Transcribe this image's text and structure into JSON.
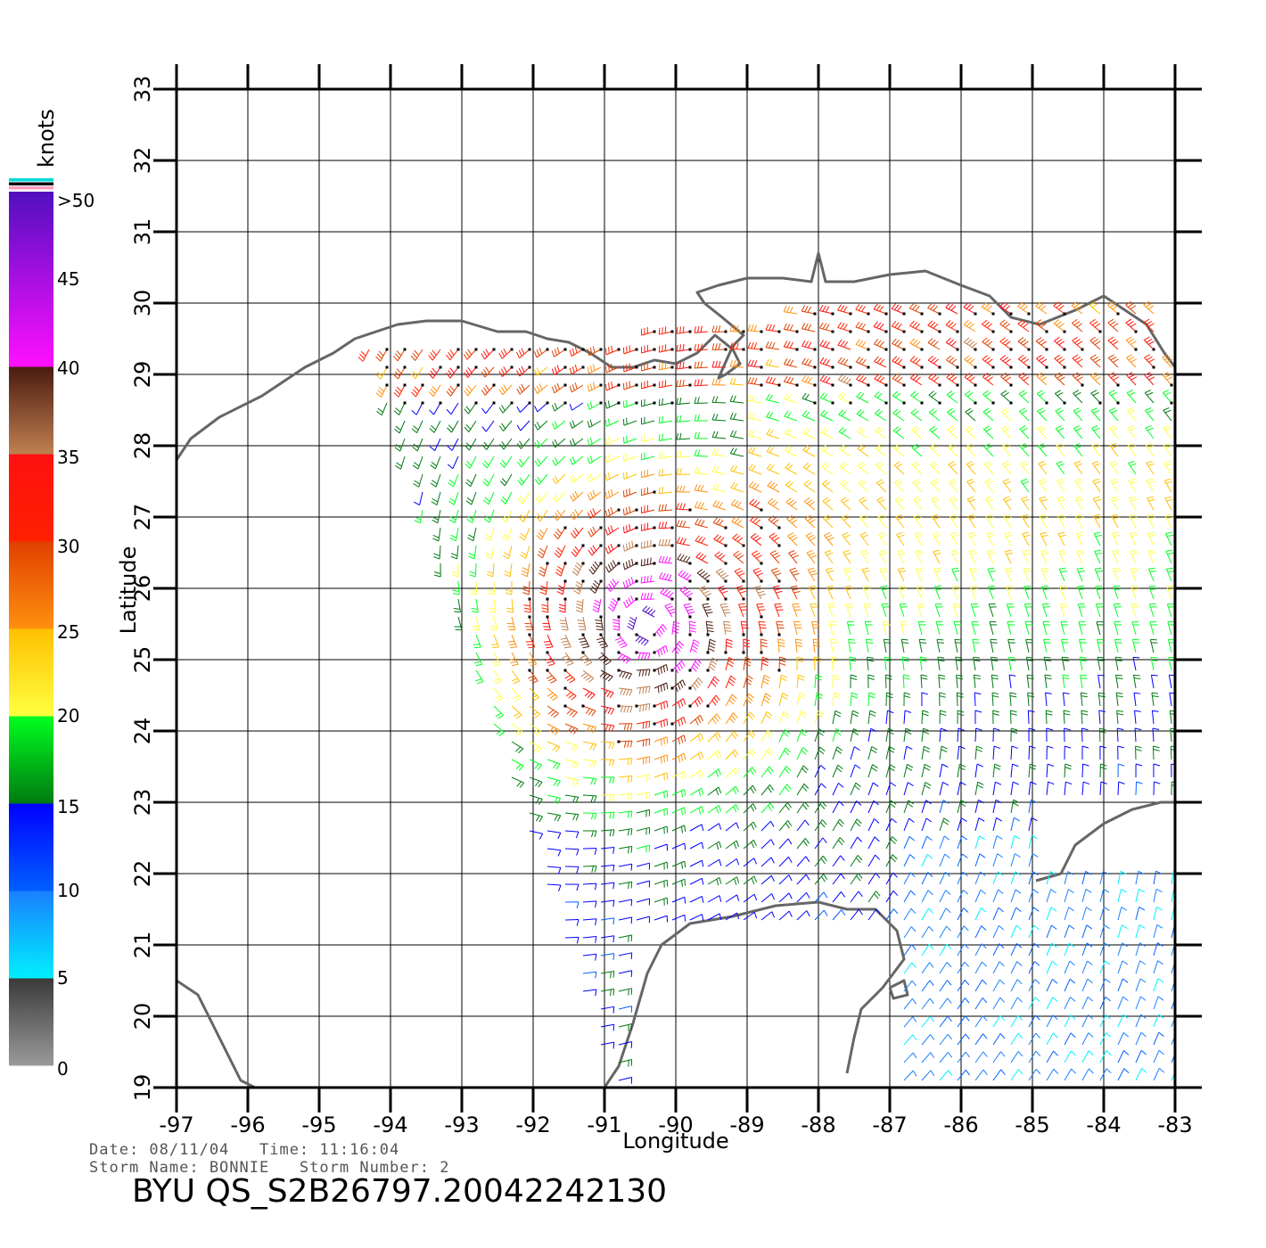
{
  "map": {
    "lon_min": -97,
    "lon_max": -83,
    "lat_min": 19,
    "lat_max": 33,
    "lon_ticks": [
      "-97",
      "-96",
      "-95",
      "-94",
      "-93",
      "-92",
      "-91",
      "-90",
      "-89",
      "-88",
      "-87",
      "-86",
      "-85",
      "-84",
      "-83"
    ],
    "lat_ticks": [
      "19",
      "20",
      "21",
      "22",
      "23",
      "24",
      "25",
      "26",
      "27",
      "28",
      "29",
      "30",
      "31",
      "32",
      "33"
    ],
    "x_label": "Longitude",
    "y_label": "Latitude",
    "grid": true,
    "coastline_color": "#666666",
    "rain_flag_color": "#000000",
    "storm_center": {
      "lon": -90.4,
      "lat": 25.5
    }
  },
  "colorbar": {
    "unit_label": "knots",
    "labels": [
      ">50",
      "45",
      "40",
      "35",
      "30",
      "25",
      "20",
      "15",
      "10",
      "5",
      "0"
    ],
    "bands": [
      {
        "from": 0,
        "to": 5,
        "top": "#3a3a3a",
        "bottom": "#9a9a9a"
      },
      {
        "from": 5,
        "to": 10,
        "top": "#1a7fff",
        "bottom": "#00f0ff"
      },
      {
        "from": 10,
        "to": 15,
        "top": "#0000ff",
        "bottom": "#0060ff"
      },
      {
        "from": 15,
        "to": 20,
        "top": "#00ff20",
        "bottom": "#007a10"
      },
      {
        "from": 20,
        "to": 25,
        "top": "#ffc000",
        "bottom": "#ffff40"
      },
      {
        "from": 25,
        "to": 30,
        "top": "#e04000",
        "bottom": "#ff9010"
      },
      {
        "from": 30,
        "to": 35,
        "top": "#ff1010",
        "bottom": "#ff2000"
      },
      {
        "from": 35,
        "to": 40,
        "top": "#4a1a10",
        "bottom": "#c08050"
      },
      {
        "from": 40,
        "to": 50,
        "top": "#5010c0",
        "bottom": "#ff10ff"
      }
    ],
    "cap_colors": [
      "#00d8d8",
      "#000000",
      "#ff9ec0"
    ]
  },
  "info": {
    "date_line": "Date: 08/11/04   Time: 11:16:04",
    "storm_line": "Storm Name: BONNIE   Storm Number: 2",
    "file_id": "BYU QS_S2B26797.20042242130"
  }
}
